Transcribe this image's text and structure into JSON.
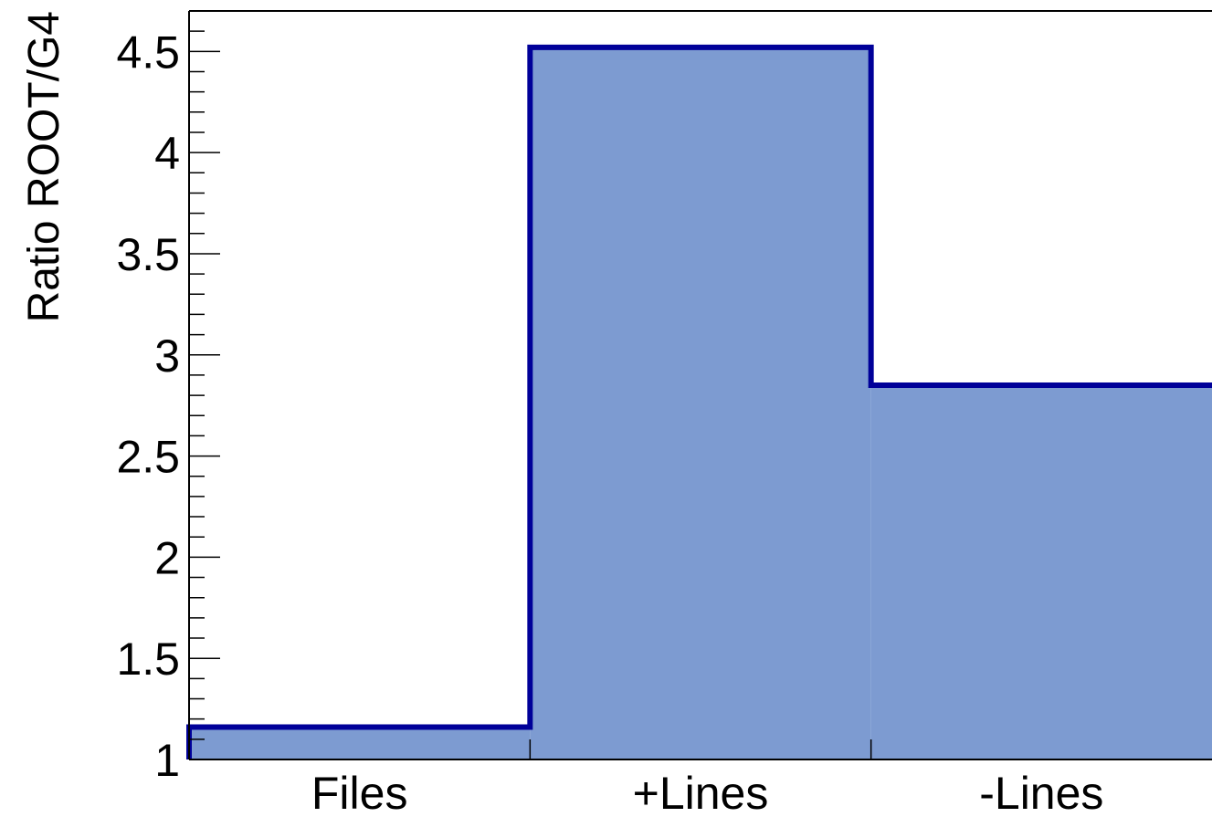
{
  "chart_data": {
    "type": "bar",
    "categories": [
      "Files",
      "+Lines",
      "-Lines"
    ],
    "values": [
      1.16,
      4.52,
      2.85
    ],
    "title": "",
    "xlabel": "",
    "ylabel": "Ratio ROOT/G4",
    "ylim": [
      1.0,
      4.7
    ],
    "yticks": [
      1,
      1.5,
      2,
      2.5,
      3,
      3.5,
      4,
      4.5
    ],
    "ytick_labels": [
      "1",
      "1.5",
      "2",
      "2.5",
      "3",
      "3.5",
      "4",
      "4.5"
    ],
    "grid": false,
    "legend": "none",
    "fill_color": "#7d9bd1",
    "line_color": "#000099"
  }
}
